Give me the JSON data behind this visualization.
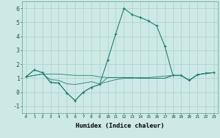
{
  "xlabel": "Humidex (Indice chaleur)",
  "background_color": "#cce9e5",
  "grid_color": "#aacfcb",
  "line_color": "#1a7a6e",
  "xlim": [
    -0.5,
    23.5
  ],
  "ylim": [
    -1.5,
    6.5
  ],
  "xticks": [
    0,
    1,
    2,
    3,
    4,
    5,
    6,
    7,
    8,
    9,
    10,
    11,
    12,
    13,
    14,
    15,
    16,
    17,
    18,
    19,
    20,
    21,
    22,
    23
  ],
  "yticks": [
    -1,
    0,
    1,
    2,
    3,
    4,
    5,
    6
  ],
  "series": [
    [
      1.1,
      1.6,
      1.4,
      0.7,
      0.65,
      -0.05,
      -0.6,
      0.0,
      0.35,
      0.55,
      2.3,
      4.2,
      6.0,
      5.55,
      5.35,
      5.1,
      4.75,
      3.3,
      1.2,
      1.2,
      0.85,
      1.25,
      1.35,
      1.4
    ],
    [
      1.1,
      1.6,
      1.4,
      0.7,
      0.65,
      -0.05,
      -0.6,
      0.0,
      0.35,
      0.55,
      1.05,
      1.05,
      1.05,
      1.05,
      1.0,
      1.0,
      1.0,
      1.0,
      1.2,
      1.2,
      0.85,
      1.25,
      1.35,
      1.4
    ],
    [
      1.1,
      1.2,
      1.3,
      0.9,
      0.85,
      0.6,
      0.55,
      0.65,
      0.75,
      0.6,
      0.75,
      0.9,
      1.0,
      1.0,
      1.05,
      1.05,
      1.1,
      1.15,
      1.2,
      1.2,
      0.85,
      1.25,
      1.35,
      1.4
    ],
    [
      1.1,
      1.2,
      1.3,
      1.3,
      1.3,
      1.25,
      1.2,
      1.2,
      1.2,
      1.1,
      1.05,
      1.05,
      1.05,
      1.05,
      1.0,
      1.0,
      1.0,
      1.0,
      1.2,
      1.2,
      0.85,
      1.25,
      1.35,
      1.4
    ]
  ]
}
